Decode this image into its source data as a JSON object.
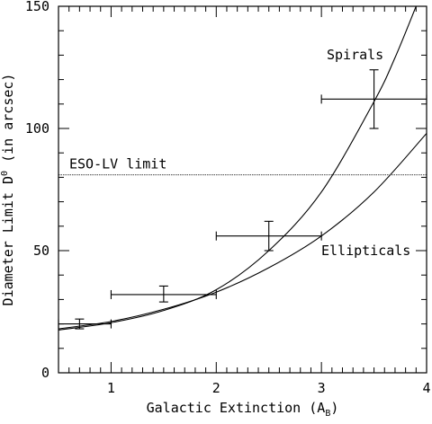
{
  "chart_data": {
    "type": "scatter",
    "xlabel": "Galactic Extinction (A",
    "xlabel_sub": "B",
    "xlabel_close": ")",
    "ylabel": "Diameter Limit D",
    "ylabel_sup": "0",
    "ylabel_rest": " (in arcsec)",
    "xlim": [
      0.5,
      4.0
    ],
    "ylim": [
      0,
      150
    ],
    "xticks": [
      1,
      2,
      3,
      4
    ],
    "yticks": [
      0,
      50,
      100,
      150
    ],
    "grid": false,
    "points": [
      {
        "x": 0.7,
        "y": 20,
        "xerr": [
          0.5,
          1.0
        ],
        "yerr": [
          18,
          22
        ]
      },
      {
        "x": 1.5,
        "y": 32,
        "xerr": [
          1.0,
          2.0
        ],
        "yerr": [
          29,
          35.5
        ]
      },
      {
        "x": 2.5,
        "y": 56,
        "xerr": [
          2.0,
          3.0
        ],
        "yerr": [
          50,
          62
        ]
      },
      {
        "x": 3.5,
        "y": 112,
        "xerr": [
          3.0,
          4.0
        ],
        "yerr": [
          100,
          124
        ]
      }
    ],
    "curves": [
      {
        "name": "Spirals",
        "x": [
          0.5,
          1.0,
          1.5,
          2.0,
          2.5,
          3.0,
          3.5,
          3.7,
          3.9
        ],
        "y": [
          17.5,
          20.5,
          25.5,
          34,
          50,
          74,
          111,
          129,
          150
        ]
      },
      {
        "name": "Ellipticals",
        "x": [
          0.5,
          1.0,
          1.5,
          2.0,
          2.5,
          3.0,
          3.5,
          4.0
        ],
        "y": [
          18,
          21,
          26,
          33,
          43,
          56,
          74,
          98
        ]
      }
    ],
    "reference_line": {
      "label": "ESO-LV limit",
      "y": 81
    }
  }
}
